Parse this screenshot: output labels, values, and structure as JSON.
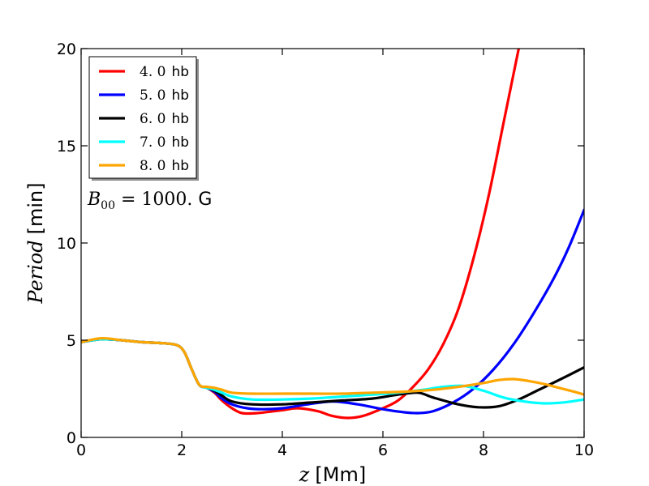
{
  "chart_data": {
    "type": "line",
    "xlabel_symbol": "z",
    "xlabel_unit": "[Mm]",
    "ylabel_symbol": "Period",
    "ylabel_unit": "[min]",
    "xlim": [
      0,
      10
    ],
    "ylim": [
      0,
      20
    ],
    "xticks": [
      0,
      2,
      4,
      6,
      8,
      10
    ],
    "yticks": [
      0,
      5,
      10,
      15,
      20
    ],
    "xtick_labels": [
      "0",
      "2",
      "4",
      "6",
      "8",
      "10"
    ],
    "ytick_labels": [
      "0",
      "5",
      "10",
      "15",
      "20"
    ],
    "grid": false,
    "legend_position": "top-left",
    "annotation": {
      "symbol": "B",
      "subscript": "00",
      "value": " = 1000. ",
      "unit": "G"
    },
    "series": [
      {
        "name": "4. 0",
        "unit": "hb",
        "color": "#ff0000",
        "x": [
          0,
          0.4,
          0.8,
          1.2,
          1.6,
          1.9,
          2.05,
          2.2,
          2.35,
          2.5,
          2.65,
          2.8,
          3.0,
          3.2,
          3.5,
          4.0,
          4.3,
          4.7,
          5.0,
          5.3,
          5.6,
          6.0,
          6.3,
          6.6,
          6.9,
          7.2,
          7.5,
          7.8,
          8.1,
          8.4,
          8.7
        ],
        "y": [
          4.9,
          5.05,
          5.0,
          4.9,
          4.85,
          4.75,
          4.4,
          3.5,
          2.7,
          2.55,
          2.3,
          1.9,
          1.5,
          1.25,
          1.25,
          1.4,
          1.5,
          1.35,
          1.1,
          1.0,
          1.1,
          1.5,
          1.9,
          2.6,
          3.5,
          4.8,
          6.6,
          9.2,
          12.4,
          16.2,
          20.0
        ]
      },
      {
        "name": "5. 0",
        "unit": "hb",
        "color": "#0000ff",
        "x": [
          0,
          0.4,
          0.8,
          1.2,
          1.6,
          1.9,
          2.05,
          2.2,
          2.35,
          2.5,
          2.65,
          2.8,
          3.0,
          3.3,
          3.6,
          4.0,
          4.5,
          5.0,
          5.5,
          6.0,
          6.4,
          6.7,
          7.0,
          7.4,
          7.8,
          8.2,
          8.6,
          9.0,
          9.4,
          9.7,
          10.0
        ],
        "y": [
          4.9,
          5.05,
          5.0,
          4.9,
          4.85,
          4.75,
          4.4,
          3.5,
          2.7,
          2.55,
          2.35,
          2.0,
          1.7,
          1.5,
          1.45,
          1.5,
          1.7,
          1.85,
          1.7,
          1.45,
          1.3,
          1.25,
          1.35,
          1.8,
          2.5,
          3.5,
          4.8,
          6.4,
          8.2,
          9.8,
          11.7
        ]
      },
      {
        "name": "6. 0",
        "unit": "hb",
        "color": "#000000",
        "x": [
          0,
          0.4,
          0.8,
          1.2,
          1.6,
          1.9,
          2.05,
          2.2,
          2.35,
          2.5,
          2.65,
          2.8,
          3.0,
          3.4,
          4.0,
          4.6,
          5.2,
          5.8,
          6.3,
          6.7,
          7.0,
          7.5,
          7.9,
          8.3,
          8.7,
          9.1,
          9.5,
          10.0
        ],
        "y": [
          4.9,
          5.05,
          5.0,
          4.9,
          4.85,
          4.75,
          4.4,
          3.5,
          2.7,
          2.55,
          2.4,
          2.15,
          1.85,
          1.7,
          1.7,
          1.8,
          1.9,
          2.0,
          2.2,
          2.3,
          2.05,
          1.7,
          1.55,
          1.6,
          1.95,
          2.45,
          2.95,
          3.6
        ]
      },
      {
        "name": "7. 0",
        "unit": "hb",
        "color": "#00ffff",
        "x": [
          0,
          0.4,
          0.8,
          1.2,
          1.6,
          1.9,
          2.05,
          2.2,
          2.35,
          2.5,
          2.65,
          2.8,
          3.0,
          3.4,
          4.0,
          4.6,
          5.2,
          5.8,
          6.3,
          6.8,
          7.2,
          7.6,
          8.0,
          8.4,
          8.8,
          9.2,
          9.6,
          10.0
        ],
        "y": [
          4.9,
          5.05,
          5.0,
          4.9,
          4.85,
          4.75,
          4.4,
          3.5,
          2.7,
          2.55,
          2.45,
          2.3,
          2.1,
          1.95,
          1.95,
          2.0,
          2.1,
          2.2,
          2.3,
          2.45,
          2.6,
          2.65,
          2.4,
          2.05,
          1.85,
          1.75,
          1.8,
          1.95
        ]
      },
      {
        "name": "8. 0",
        "unit": "hb",
        "color": "#ffa500",
        "x": [
          0,
          0.4,
          0.8,
          1.2,
          1.6,
          1.9,
          2.05,
          2.2,
          2.35,
          2.5,
          2.65,
          2.8,
          3.0,
          3.4,
          4.0,
          4.6,
          5.2,
          5.8,
          6.4,
          7.0,
          7.5,
          8.0,
          8.3,
          8.6,
          8.9,
          9.2,
          9.5,
          9.8,
          10.0
        ],
        "y": [
          4.9,
          5.1,
          5.0,
          4.9,
          4.85,
          4.75,
          4.4,
          3.5,
          2.7,
          2.6,
          2.55,
          2.45,
          2.3,
          2.25,
          2.25,
          2.25,
          2.25,
          2.3,
          2.35,
          2.45,
          2.6,
          2.8,
          2.95,
          3.0,
          2.9,
          2.75,
          2.55,
          2.35,
          2.2
        ]
      }
    ]
  }
}
